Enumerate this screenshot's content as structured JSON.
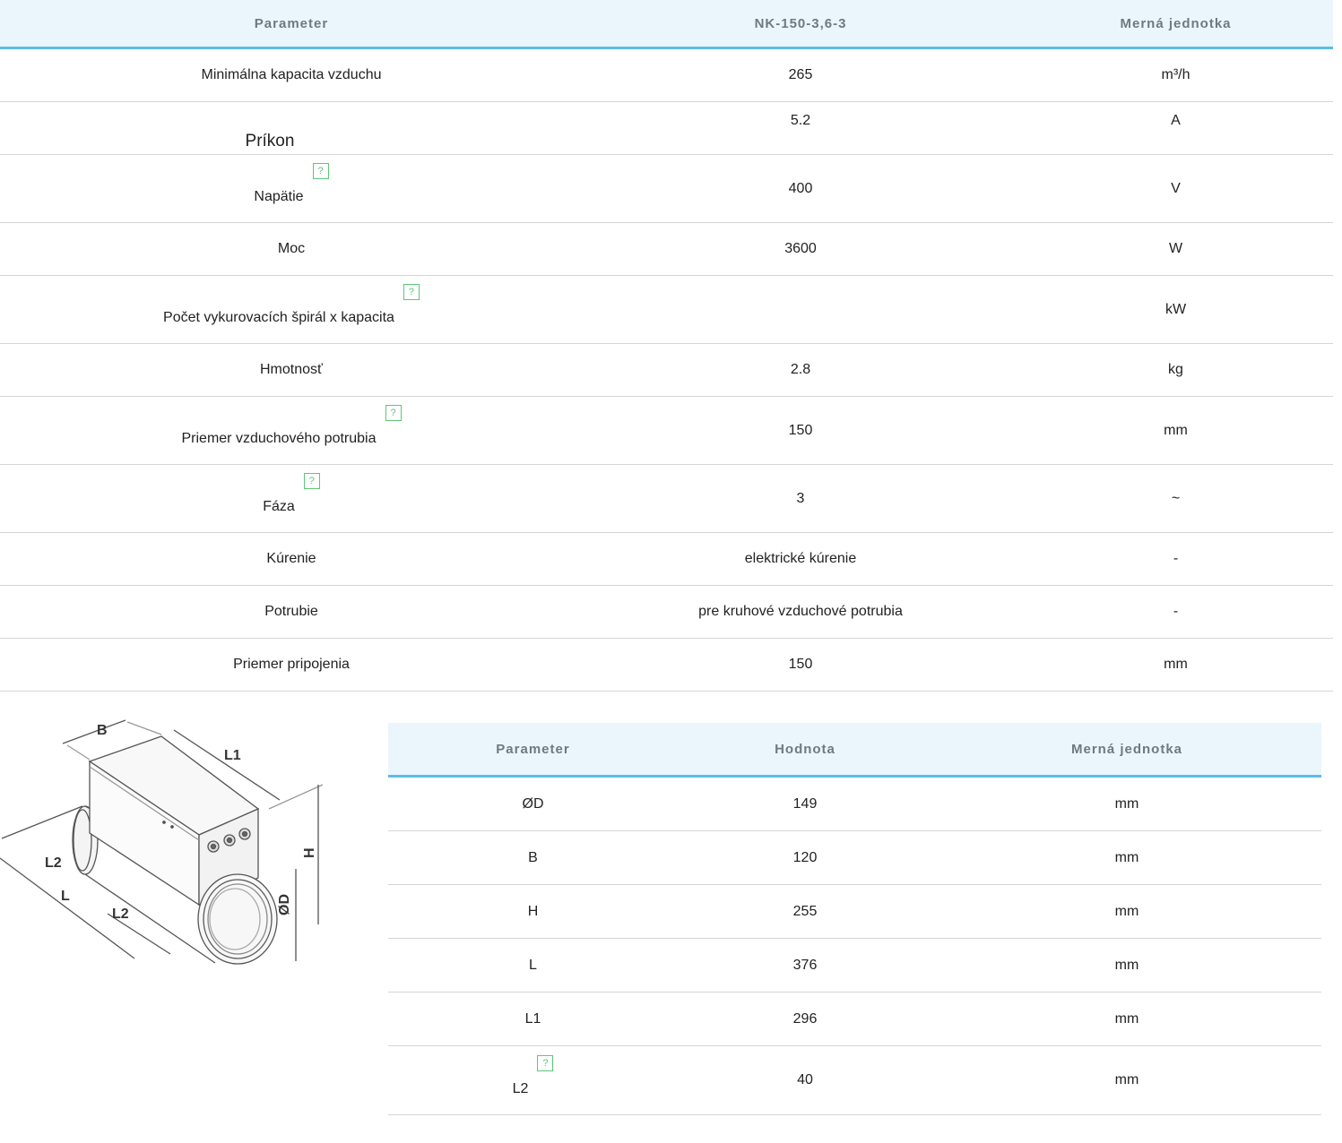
{
  "spec_table": {
    "headers": [
      "Parameter",
      "NK-150-3,6-3",
      "Merná jednotka"
    ],
    "rows": [
      {
        "param": "Minimálna kapacita vzduchu",
        "value": "265",
        "unit": "m³/h",
        "help": false
      },
      {
        "param": "Príkon",
        "value": "5.2",
        "unit": "A",
        "help": false
      },
      {
        "param": "Napätie",
        "value": "400",
        "unit": "V",
        "help": true
      },
      {
        "param": "Moc",
        "value": "3600",
        "unit": "W",
        "help": false
      },
      {
        "param": "Počet vykurovacích špirál x kapacita",
        "value": "",
        "unit": "kW",
        "help": true
      },
      {
        "param": "Hmotnosť",
        "value": "2.8",
        "unit": "kg",
        "help": false
      },
      {
        "param": "Priemer vzduchového potrubia",
        "value": "150",
        "unit": "mm",
        "help": true
      },
      {
        "param": "Fáza",
        "value": "3",
        "unit": "~",
        "help": true
      },
      {
        "param": "Kúrenie",
        "value": "elektrické kúrenie",
        "unit": "-",
        "help": false
      },
      {
        "param": "Potrubie",
        "value": "pre kruhové vzduchové potrubia",
        "unit": "-",
        "help": false
      },
      {
        "param": "Priemer pripojenia",
        "value": "150",
        "unit": "mm",
        "help": false
      }
    ]
  },
  "help_icon_glyph": "?",
  "drawing_labels": {
    "B": "B",
    "L1": "L1",
    "L2_left": "L2",
    "L": "L",
    "L2_bottom": "L2",
    "D": "ØD",
    "H": "H"
  },
  "dim_table": {
    "headers": [
      "Parameter",
      "Hodnota",
      "Merná jednotka"
    ],
    "rows": [
      {
        "param": "ØD",
        "value": "149",
        "unit": "mm",
        "help": false
      },
      {
        "param": "B",
        "value": "120",
        "unit": "mm",
        "help": false
      },
      {
        "param": "H",
        "value": "255",
        "unit": "mm",
        "help": false
      },
      {
        "param": "L",
        "value": "376",
        "unit": "mm",
        "help": false
      },
      {
        "param": "L1",
        "value": "296",
        "unit": "mm",
        "help": false
      },
      {
        "param": "L2",
        "value": "40",
        "unit": "mm",
        "help": true
      }
    ]
  },
  "colors": {
    "header_bg": "#eaf6fb",
    "header_border": "#5bbde6",
    "help_icon": "#5dc77a"
  }
}
